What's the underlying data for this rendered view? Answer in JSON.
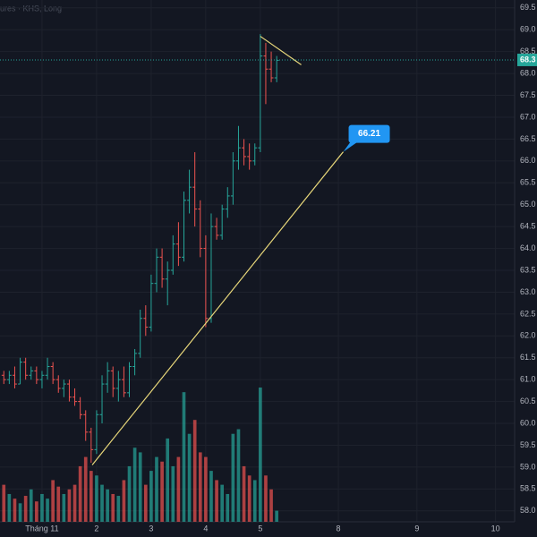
{
  "chart_data": {
    "type": "ohlc",
    "watermark": "ures · KHS, Long",
    "x": [
      -7,
      -6,
      -5,
      -4,
      -3,
      -2,
      -1,
      0,
      1,
      2,
      3,
      4,
      5,
      6,
      7,
      8,
      9,
      10,
      11,
      12,
      13,
      14,
      15,
      16,
      17,
      18,
      19,
      20,
      21,
      22,
      23,
      24,
      25,
      26,
      27,
      28,
      29,
      30,
      31,
      32,
      33,
      34,
      35,
      36,
      37,
      38,
      39,
      40,
      41,
      42,
      43
    ],
    "open": [
      61.1,
      61.0,
      61.1,
      60.9,
      61.4,
      61.1,
      61.2,
      61.0,
      61.1,
      61.3,
      61.0,
      60.8,
      60.9,
      60.6,
      60.5,
      60.2,
      59.8,
      59.4,
      60.2,
      60.9,
      61.2,
      60.8,
      61.0,
      60.7,
      61.3,
      61.6,
      62.4,
      62.2,
      63.2,
      63.8,
      63.3,
      63.5,
      64.1,
      63.8,
      65.1,
      65.4,
      64.9,
      64.0,
      62.4,
      64.5,
      64.3,
      64.9,
      65.2,
      66.0,
      66.3,
      66.1,
      66.0,
      66.3,
      68.4,
      68.1,
      67.9
    ],
    "high": [
      61.2,
      61.2,
      61.3,
      61.5,
      61.5,
      61.3,
      61.3,
      61.2,
      61.5,
      61.4,
      61.1,
      61.0,
      61.0,
      60.8,
      60.6,
      60.3,
      59.9,
      60.3,
      61.1,
      61.4,
      61.3,
      61.2,
      61.3,
      61.4,
      61.7,
      62.6,
      62.7,
      63.4,
      64.0,
      64.0,
      63.7,
      64.3,
      64.6,
      65.3,
      65.8,
      66.2,
      65.1,
      64.3,
      64.8,
      64.7,
      65.0,
      65.4,
      66.2,
      66.8,
      66.5,
      66.4,
      66.4,
      68.9,
      68.7,
      68.5,
      68.4
    ],
    "low": [
      60.9,
      60.9,
      60.8,
      60.9,
      61.0,
      61.0,
      60.9,
      60.8,
      61.0,
      60.9,
      60.7,
      60.6,
      60.5,
      60.4,
      60.1,
      59.6,
      59.1,
      59.3,
      60.0,
      60.7,
      60.6,
      60.5,
      60.6,
      60.6,
      61.1,
      61.5,
      62.0,
      62.1,
      63.0,
      63.1,
      62.7,
      63.4,
      63.6,
      63.7,
      64.8,
      64.5,
      63.8,
      62.2,
      62.3,
      64.2,
      64.2,
      64.7,
      65.0,
      65.8,
      65.9,
      65.8,
      65.9,
      66.2,
      67.3,
      67.8,
      67.8
    ],
    "close": [
      61.0,
      61.1,
      60.9,
      61.4,
      61.1,
      61.2,
      61.0,
      61.1,
      61.3,
      61.0,
      60.8,
      60.9,
      60.6,
      60.5,
      60.2,
      59.8,
      59.4,
      60.2,
      60.9,
      61.2,
      60.8,
      61.0,
      60.7,
      61.3,
      61.6,
      62.4,
      62.2,
      63.2,
      63.8,
      63.3,
      63.5,
      64.1,
      63.8,
      65.1,
      65.4,
      64.9,
      64.0,
      62.4,
      64.5,
      64.3,
      64.9,
      65.2,
      66.0,
      66.3,
      66.1,
      66.0,
      66.3,
      68.4,
      68.1,
      67.9,
      68.3
    ],
    "volume": [
      40,
      30,
      25,
      20,
      28,
      35,
      22,
      30,
      25,
      45,
      38,
      30,
      35,
      40,
      60,
      70,
      55,
      50,
      40,
      35,
      30,
      28,
      45,
      60,
      80,
      75,
      40,
      55,
      70,
      65,
      90,
      60,
      70,
      140,
      95,
      110,
      75,
      70,
      55,
      45,
      40,
      30,
      95,
      100,
      60,
      50,
      45,
      145,
      50,
      35,
      12
    ],
    "up_color": "#26a69a",
    "down_color": "#ef5350",
    "xlim": [
      -7.7,
      86.6
    ],
    "xticks": [
      {
        "value": 0,
        "label": "Tháng 11"
      },
      {
        "value": 10,
        "label": "2"
      },
      {
        "value": 20,
        "label": "3"
      },
      {
        "value": 30,
        "label": "4"
      },
      {
        "value": 40,
        "label": "5"
      },
      {
        "value": 54.3,
        "label": "8"
      },
      {
        "value": 68.7,
        "label": "9"
      },
      {
        "value": 83.1,
        "label": "10"
      }
    ],
    "ylim": [
      57.75,
      69.68
    ],
    "yticks": [
      {
        "value": 58,
        "label": "58.0"
      },
      58.5,
      {
        "value": 59,
        "label": "59.0"
      },
      59.5,
      {
        "value": 60,
        "label": "60.0"
      },
      60.5,
      {
        "value": 61,
        "label": "61.0"
      },
      61.5,
      {
        "value": 62,
        "label": "62.0"
      },
      62.5,
      {
        "value": 63,
        "label": "63.0"
      },
      63.5,
      {
        "value": 64,
        "label": "64.0"
      },
      64.5,
      {
        "value": 65,
        "label": "65.0"
      },
      65.5,
      {
        "value": 66,
        "label": "66.0"
      },
      66.5,
      {
        "value": 67,
        "label": "67.0"
      },
      67.5,
      {
        "value": 68,
        "label": "68.0"
      },
      68.5,
      {
        "value": 69,
        "label": "69.0"
      },
      69.5
    ],
    "grid": true,
    "last_price": {
      "value": 68.31,
      "label": "68.3"
    },
    "annotations": [
      {
        "x": [
          9.2,
          55.2
        ],
        "y": [
          59.05,
          66.21
        ],
        "color": "#e8d77a"
      },
      {
        "x": [
          40.0,
          47.5
        ],
        "y": [
          68.85,
          68.2
        ],
        "color": "#e8d77a"
      }
    ]
  }
}
